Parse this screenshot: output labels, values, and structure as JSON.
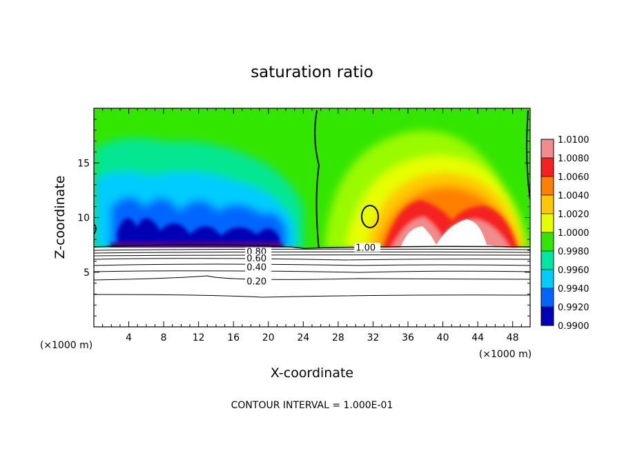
{
  "chart_data": {
    "type": "contour",
    "title": "saturation ratio",
    "xlabel": "X-coordinate",
    "ylabel": "Z-coordinate",
    "x_unit": "(×1000 m)",
    "y_unit": "(×1000 m)",
    "xlim": [
      0,
      50
    ],
    "ylim": [
      0,
      20
    ],
    "x_ticks": [
      4,
      8,
      12,
      16,
      20,
      24,
      28,
      32,
      36,
      40,
      44,
      48
    ],
    "y_ticks": [
      5,
      10,
      15
    ],
    "colorbar": {
      "levels": [
        "1.0100",
        "1.0080",
        "1.0060",
        "1.0040",
        "1.0020",
        "1.0000",
        "0.9980",
        "0.9960",
        "0.9940",
        "0.9920",
        "0.9900"
      ],
      "colors": [
        "#f08c8c",
        "#f52020",
        "#ff8000",
        "#ffc800",
        "#e6ff00",
        "#33e600",
        "#00e6a0",
        "#00ccff",
        "#0066ff",
        "#0000b4",
        "#5a0078"
      ]
    },
    "contour_labels": [
      {
        "text": "1.00",
        "x": 30.0,
        "z": 7.3
      },
      {
        "text": "0.80",
        "x": 17.5,
        "z": 6.9
      },
      {
        "text": "0.60",
        "x": 17.5,
        "z": 6.3
      },
      {
        "text": "0.40",
        "x": 17.5,
        "z": 5.5
      },
      {
        "text": "0.20",
        "x": 17.5,
        "z": 4.2
      }
    ],
    "contour_interval_note": "CONTOUR INTERVAL = 1.000E-01"
  }
}
